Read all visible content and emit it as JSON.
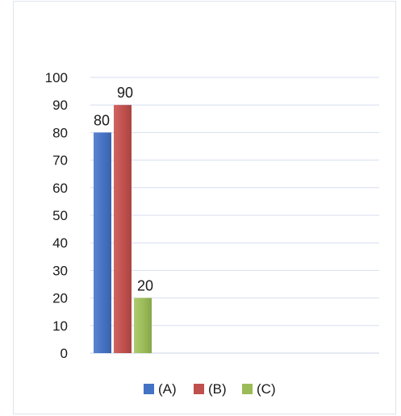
{
  "chart_data": {
    "type": "bar",
    "title": "",
    "xlabel": "",
    "ylabel": "",
    "ylim": [
      0,
      100
    ],
    "yticks": [
      "0",
      "10",
      "20",
      "30",
      "40",
      "50",
      "60",
      "70",
      "80",
      "90",
      "100"
    ],
    "grid": true,
    "legend_position": "bottom",
    "categories": [
      ""
    ],
    "series": [
      {
        "name": "(A)",
        "values": [
          80
        ],
        "data_label": "80",
        "color": "#4472C4"
      },
      {
        "name": "(B)",
        "values": [
          90
        ],
        "data_label": "90",
        "color": "#C0504D"
      },
      {
        "name": "(C)",
        "values": [
          20
        ],
        "data_label": "20",
        "color": "#9BBB59"
      }
    ]
  }
}
